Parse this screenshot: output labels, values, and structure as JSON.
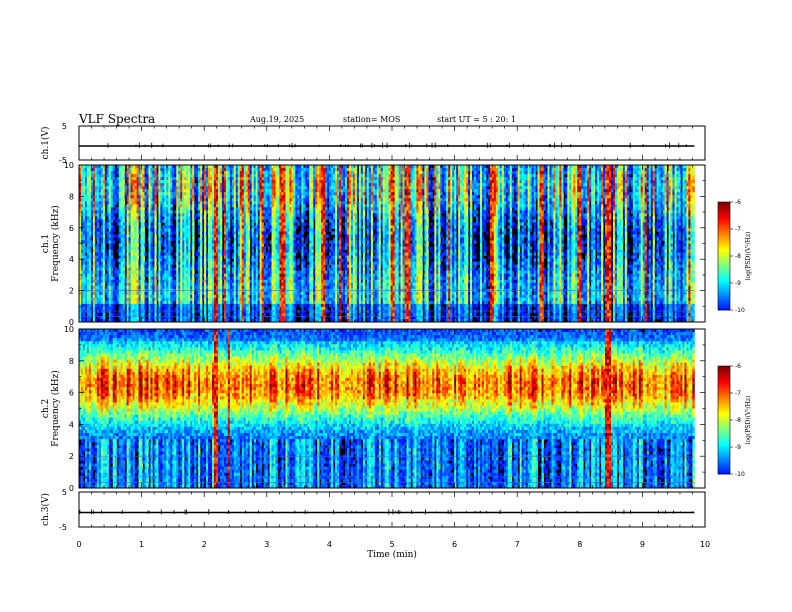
{
  "header": {
    "title": "VLF Spectra",
    "date": "Aug.19, 2025",
    "station": "station= MOS",
    "start_ut": "start  UT =  5 : 20: 1"
  },
  "chart_data": [
    {
      "type": "line",
      "panel": "ch1-waveform",
      "ylabel": "ch.1(V)",
      "yticks": [
        "5",
        "-5"
      ],
      "ylim": [
        -5,
        5
      ],
      "xlim": [
        0,
        10
      ],
      "series": [
        {
          "values_summary": "near-constant trace slightly below 0 V with sparse small spikes"
        }
      ]
    },
    {
      "type": "heatmap",
      "panel": "ch1-spectrogram",
      "ylabel": "ch.1\nFrequency (kHz)",
      "ylim": [
        0,
        10
      ],
      "yticks": [
        "0",
        "2",
        "4",
        "6",
        "8",
        "10"
      ],
      "xlim": [
        0,
        9.83
      ],
      "background_colormap_note": "mostly black/blue, broadband vertical bursts",
      "colorbar": {
        "label": "log(PSD)(V²/Hz)",
        "ticks": [
          "-6",
          "-7",
          "-8",
          "-9",
          "-10"
        ],
        "range": [
          -10,
          -6
        ]
      },
      "strong_burst_times_min": [
        2.2,
        3.25,
        3.9,
        5.0,
        5.25,
        6.6,
        7.4,
        8.0,
        8.45
      ]
    },
    {
      "type": "heatmap",
      "panel": "ch2-spectrogram",
      "ylabel": "ch.2\nFrequency (kHz)",
      "ylim": [
        0,
        10
      ],
      "yticks": [
        "0",
        "2",
        "4",
        "6",
        "8",
        "10"
      ],
      "xlim": [
        0,
        9.83
      ],
      "band_center_khz": 6.5,
      "colorbar": {
        "label": "log(PSD)(V²/Hz)",
        "ticks": [
          "-6",
          "-7",
          "-8",
          "-9",
          "-10"
        ],
        "range": [
          -10,
          -6
        ]
      },
      "strong_burst_times_min": [
        2.2,
        8.45
      ]
    },
    {
      "type": "line",
      "panel": "ch3-waveform",
      "ylabel": "ch.3(V)",
      "yticks": [
        "5",
        "-5"
      ],
      "ylim": [
        -5,
        5
      ],
      "xlim": [
        0,
        10
      ],
      "series": [
        {
          "values_summary": "near-constant trace slightly below 0 V with small spikes"
        }
      ]
    }
  ],
  "xaxis": {
    "label": "Time (min)",
    "ticks": [
      "0",
      "1",
      "2",
      "3",
      "4",
      "5",
      "6",
      "7",
      "8",
      "9",
      "10"
    ]
  },
  "colors": {
    "trace": "#000000",
    "axis": "#000000"
  }
}
